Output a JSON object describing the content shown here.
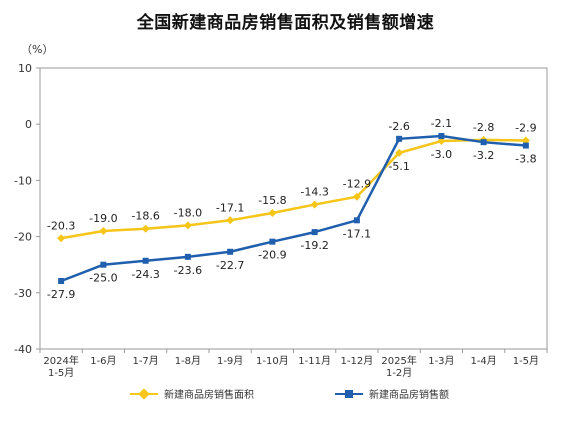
{
  "chart_data": {
    "type": "line",
    "title": "全国新建商品房销售面积及销售额增速",
    "y_unit": "（%）",
    "ylim": [
      -40,
      10
    ],
    "yticks": [
      10,
      0,
      -10,
      -20,
      -30,
      -40
    ],
    "grid": false,
    "legend_position": "bottom",
    "categories": [
      [
        "2024年",
        "1-5月"
      ],
      [
        "1-6月"
      ],
      [
        "1-7月"
      ],
      [
        "1-8月"
      ],
      [
        "1-9月"
      ],
      [
        "1-10月"
      ],
      [
        "1-11月"
      ],
      [
        "1-12月"
      ],
      [
        "2025年",
        "1-2月"
      ],
      [
        "1-3月"
      ],
      [
        "1-4月"
      ],
      [
        "1-5月"
      ]
    ],
    "series": [
      {
        "name": "新建商品房销售面积",
        "color": "#f5c518",
        "values": [
          -20.3,
          -19.0,
          -18.6,
          -18.0,
          -17.1,
          -15.8,
          -14.3,
          -12.9,
          -5.1,
          -3.0,
          -2.8,
          -2.9
        ],
        "label_text": [
          "-20.3",
          "-19.0",
          "-18.6",
          "-18.0",
          "-17.1",
          "-15.8",
          "-14.3",
          "-12.9",
          "-5.1",
          "-3.0",
          "-2.8",
          "-2.9"
        ]
      },
      {
        "name": "新建商品房销售额",
        "color": "#1f5fae",
        "values": [
          -27.9,
          -25.0,
          -24.3,
          -23.6,
          -22.7,
          -20.9,
          -19.2,
          -17.1,
          -2.6,
          -2.1,
          -3.2,
          -3.8
        ],
        "label_text": [
          "-27.9",
          "-25.0",
          "-24.3",
          "-23.6",
          "-22.7",
          "-20.9",
          "-19.2",
          "-17.1",
          "-2.6",
          "-2.1",
          "-3.2",
          "-3.8"
        ]
      }
    ]
  }
}
